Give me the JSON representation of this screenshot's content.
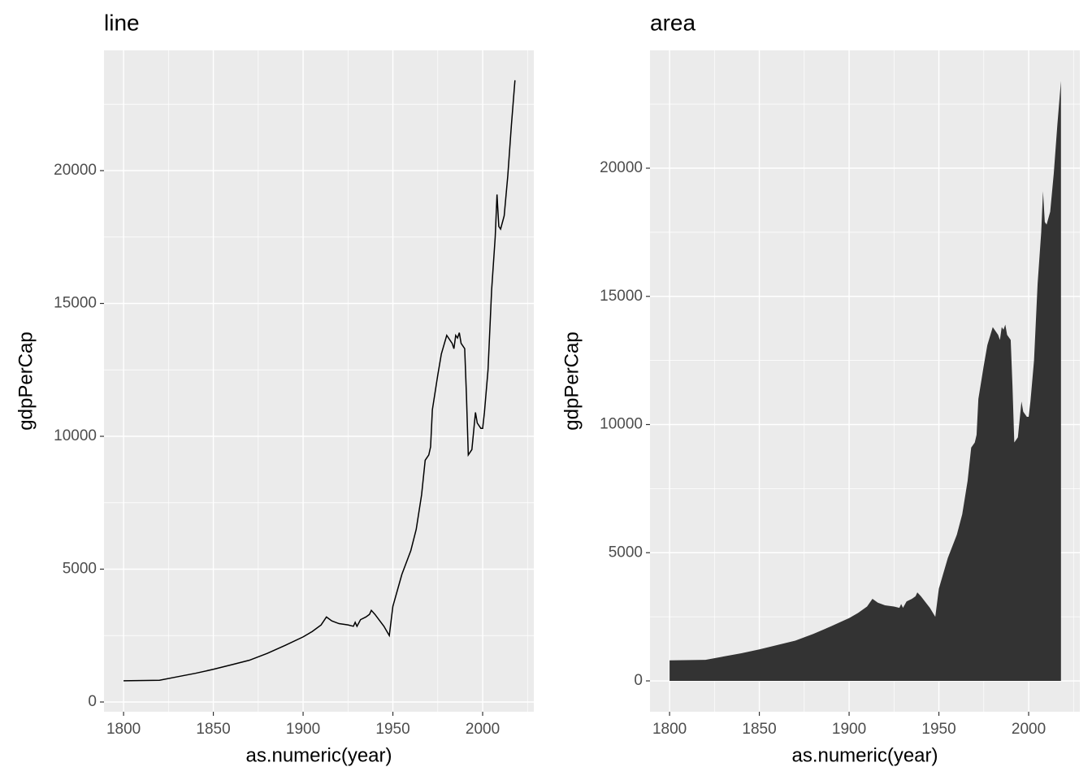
{
  "chart_data": [
    {
      "type": "line",
      "title": "line",
      "x_label": "as.numeric(year)",
      "y_label": "gdpPerCap",
      "color": "#000000",
      "grid": true,
      "x": [
        1800,
        1820,
        1830,
        1840,
        1850,
        1860,
        1870,
        1880,
        1890,
        1900,
        1905,
        1910,
        1913,
        1916,
        1920,
        1925,
        1928,
        1929,
        1930,
        1932,
        1935,
        1937,
        1938,
        1940,
        1945,
        1948,
        1950,
        1955,
        1960,
        1963,
        1966,
        1968,
        1970,
        1971,
        1972,
        1975,
        1977,
        1980,
        1983,
        1984,
        1985,
        1986,
        1987,
        1988,
        1990,
        1991,
        1992,
        1994,
        1995,
        1996,
        1997,
        1999,
        2000,
        2001,
        2003,
        2005,
        2007,
        2008,
        2009,
        2010,
        2012,
        2014,
        2016,
        2018
      ],
      "values": [
        800,
        820,
        950,
        1080,
        1230,
        1400,
        1570,
        1830,
        2130,
        2450,
        2650,
        2900,
        3200,
        3050,
        2950,
        2900,
        2850,
        3000,
        2850,
        3100,
        3200,
        3300,
        3450,
        3300,
        2850,
        2500,
        3600,
        4800,
        5700,
        6500,
        7800,
        9100,
        9300,
        9600,
        11000,
        12300,
        13100,
        13800,
        13500,
        13300,
        13800,
        13700,
        13900,
        13500,
        13300,
        11500,
        9300,
        9500,
        10200,
        10900,
        10500,
        10300,
        10300,
        10900,
        12500,
        15500,
        17500,
        19100,
        17900,
        17800,
        18300,
        19800,
        21700,
        23400
      ],
      "xlim": [
        1789.1,
        2028.5
      ],
      "ylim": [
        -367,
        24526
      ],
      "xticks": [
        1800,
        1850,
        1900,
        1950,
        2000
      ],
      "yticks": [
        0,
        5000,
        10000,
        15000,
        20000
      ]
    },
    {
      "type": "area",
      "title": "area",
      "x_label": "as.numeric(year)",
      "y_label": "gdpPerCap",
      "color": "#333333",
      "grid": true,
      "x": [
        1800,
        1820,
        1830,
        1840,
        1850,
        1860,
        1870,
        1880,
        1890,
        1900,
        1905,
        1910,
        1913,
        1916,
        1920,
        1925,
        1928,
        1929,
        1930,
        1932,
        1935,
        1937,
        1938,
        1940,
        1945,
        1948,
        1950,
        1955,
        1960,
        1963,
        1966,
        1968,
        1970,
        1971,
        1972,
        1975,
        1977,
        1980,
        1983,
        1984,
        1985,
        1986,
        1987,
        1988,
        1990,
        1991,
        1992,
        1994,
        1995,
        1996,
        1997,
        1999,
        2000,
        2001,
        2003,
        2005,
        2007,
        2008,
        2009,
        2010,
        2012,
        2014,
        2016,
        2018
      ],
      "values": [
        800,
        820,
        950,
        1080,
        1230,
        1400,
        1570,
        1830,
        2130,
        2450,
        2650,
        2900,
        3200,
        3050,
        2950,
        2900,
        2850,
        3000,
        2850,
        3100,
        3200,
        3300,
        3450,
        3300,
        2850,
        2500,
        3600,
        4800,
        5700,
        6500,
        7800,
        9100,
        9300,
        9600,
        11000,
        12300,
        13100,
        13800,
        13500,
        13300,
        13800,
        13700,
        13900,
        13500,
        13300,
        11500,
        9300,
        9500,
        10200,
        10900,
        10500,
        10300,
        10300,
        10900,
        12500,
        15500,
        17500,
        19100,
        17900,
        17800,
        18300,
        19800,
        21700,
        23400
      ],
      "xlim": [
        1789.1,
        2028.5
      ],
      "ylim": [
        -1204,
        24596
      ],
      "xticks": [
        1800,
        1850,
        1900,
        1950,
        2000
      ],
      "yticks": [
        0,
        5000,
        10000,
        15000,
        20000
      ]
    }
  ]
}
